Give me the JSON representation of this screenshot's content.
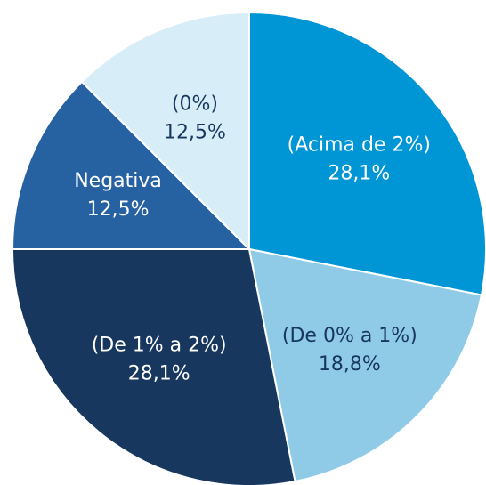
{
  "chart_data": {
    "type": "pie",
    "categories": [
      "(Acima de 2%)",
      "(De 0% a 1%)",
      "(De 1% a 2%)",
      "Negativa",
      "(0%)"
    ],
    "values": [
      28.1,
      18.8,
      28.1,
      12.5,
      12.5
    ],
    "value_labels": [
      "28,1%",
      "18,8%",
      "28,1%",
      "12,5%",
      "12,5%"
    ],
    "colors": [
      "#0095d4",
      "#8fcbe6",
      "#17375e",
      "#2661a2",
      "#d7edf8"
    ]
  }
}
